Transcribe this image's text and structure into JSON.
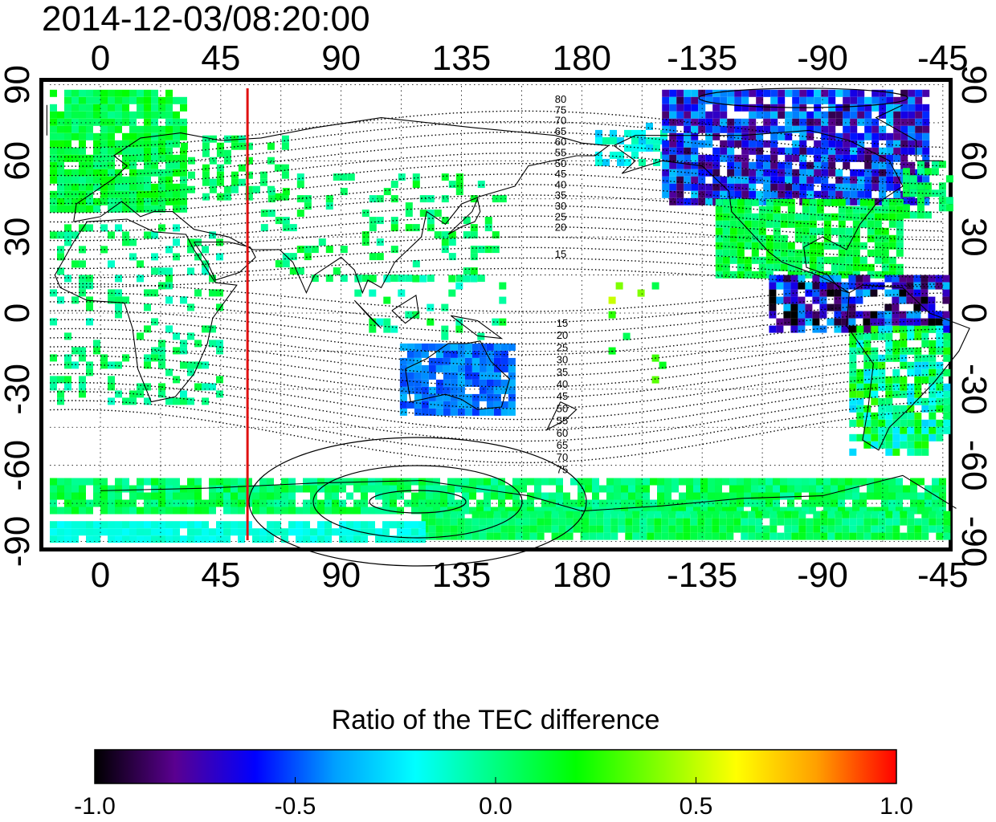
{
  "title": "2014-12-03/08:20:00",
  "map": {
    "lon_ticks": [
      "0",
      "45",
      "90",
      "135",
      "180",
      "-135",
      "-90",
      "-45"
    ],
    "lat_ticks": [
      "90",
      "60",
      "30",
      "0",
      "-30",
      "-60",
      "-90"
    ],
    "north_contour_labels": [
      "80",
      "75",
      "70",
      "65",
      "60",
      "55",
      "50",
      "45",
      "40",
      "35",
      "30",
      "25",
      "20",
      "15"
    ],
    "south_contour_labels": [
      "15",
      "20",
      "25",
      "30",
      "35",
      "40",
      "45",
      "50",
      "55",
      "60",
      "65",
      "70",
      "75"
    ],
    "marker_longitude": 55,
    "marker_color": "#e01010"
  },
  "colorbar": {
    "title": "Ratio of the TEC difference",
    "ticks": [
      "-1.0",
      "-0.5",
      "0.0",
      "0.5",
      "1.0"
    ],
    "min": -1.0,
    "max": 1.0,
    "colormap": [
      "#000000",
      "#5a0090",
      "#0000ff",
      "#00a0ff",
      "#00ffff",
      "#00ff80",
      "#00ff00",
      "#80ff00",
      "#ffff00",
      "#ffa000",
      "#ff0000"
    ]
  }
}
